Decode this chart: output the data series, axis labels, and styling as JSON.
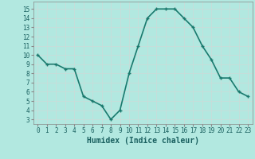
{
  "x": [
    0,
    1,
    2,
    3,
    4,
    5,
    6,
    7,
    8,
    9,
    10,
    11,
    12,
    13,
    14,
    15,
    16,
    17,
    18,
    19,
    20,
    21,
    22,
    23
  ],
  "y": [
    10,
    9,
    9,
    8.5,
    8.5,
    5.5,
    5.0,
    4.5,
    3.0,
    4.0,
    8.0,
    11.0,
    14.0,
    15.0,
    15.0,
    15.0,
    14.0,
    13.0,
    11.0,
    9.5,
    7.5,
    7.5,
    6.0,
    5.5
  ],
  "line_color": "#1a7a6e",
  "marker_color": "#1a7a6e",
  "bg_color": "#b2e8e0",
  "grid_color": "#c8ddd9",
  "xlabel": "Humidex (Indice chaleur)",
  "xlabel_fontsize": 7,
  "xlabel_weight": "bold",
  "xlim": [
    -0.5,
    23.5
  ],
  "ylim": [
    2.5,
    15.8
  ],
  "yticks": [
    3,
    4,
    5,
    6,
    7,
    8,
    9,
    10,
    11,
    12,
    13,
    14,
    15
  ],
  "xticks": [
    0,
    1,
    2,
    3,
    4,
    5,
    6,
    7,
    8,
    9,
    10,
    11,
    12,
    13,
    14,
    15,
    16,
    17,
    18,
    19,
    20,
    21,
    22,
    23
  ],
  "tick_fontsize": 5.5,
  "linewidth": 1.2,
  "markersize": 2.5
}
